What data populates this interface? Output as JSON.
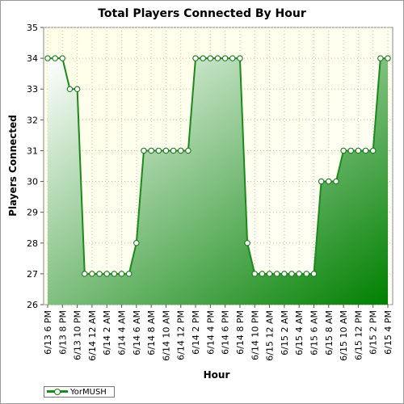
{
  "chart_data": {
    "type": "area",
    "title": "Total Players Connected By Hour",
    "xlabel": "Hour",
    "ylabel": "Players Connected",
    "ylim": [
      26,
      35
    ],
    "yticks": [
      26,
      27,
      28,
      29,
      30,
      31,
      32,
      33,
      34,
      35
    ],
    "grid": true,
    "legend_position": "bottom-left",
    "x_tick_labels": [
      "6/13 6 PM",
      "6/13 8 PM",
      "6/13 10 PM",
      "6/14 12 AM",
      "6/14 2 AM",
      "6/14 4 AM",
      "6/14 6 AM",
      "6/14 8 AM",
      "6/14 10 AM",
      "6/14 12 PM",
      "6/14 2 PM",
      "6/14 4 PM",
      "6/14 6 PM",
      "6/14 8 PM",
      "6/14 10 PM",
      "6/15 12 AM",
      "6/15 2 AM",
      "6/15 4 AM",
      "6/15 6 AM",
      "6/15 8 AM",
      "6/15 10 AM",
      "6/15 12 PM",
      "6/15 2 PM",
      "6/15 4 PM"
    ],
    "series": [
      {
        "name": "YorMUSH",
        "color": "#008000",
        "x": [
          "6/13 6 PM",
          "6/13 7 PM",
          "6/13 8 PM",
          "6/13 9 PM",
          "6/13 10 PM",
          "6/13 11 PM",
          "6/14 12 AM",
          "6/14 1 AM",
          "6/14 2 AM",
          "6/14 3 AM",
          "6/14 4 AM",
          "6/14 5 AM",
          "6/14 6 AM",
          "6/14 7 AM",
          "6/14 8 AM",
          "6/14 9 AM",
          "6/14 10 AM",
          "6/14 11 AM",
          "6/14 12 PM",
          "6/14 1 PM",
          "6/14 2 PM",
          "6/14 3 PM",
          "6/14 4 PM",
          "6/14 5 PM",
          "6/14 6 PM",
          "6/14 7 PM",
          "6/14 8 PM",
          "6/14 9 PM",
          "6/14 10 PM",
          "6/14 11 PM",
          "6/15 12 AM",
          "6/15 1 AM",
          "6/15 2 AM",
          "6/15 3 AM",
          "6/15 4 AM",
          "6/15 5 AM",
          "6/15 6 AM",
          "6/15 7 AM",
          "6/15 8 AM",
          "6/15 9 AM",
          "6/15 10 AM",
          "6/15 11 AM",
          "6/15 12 PM",
          "6/15 1 PM",
          "6/15 2 PM",
          "6/15 3 PM",
          "6/15 4 PM"
        ],
        "values": [
          34,
          34,
          34,
          33,
          33,
          27,
          27,
          27,
          27,
          27,
          27,
          27,
          28,
          31,
          31,
          31,
          31,
          31,
          31,
          31,
          34,
          34,
          34,
          34,
          34,
          34,
          34,
          28,
          27,
          27,
          27,
          27,
          27,
          27,
          27,
          27,
          27,
          30,
          30,
          30,
          31,
          31,
          31,
          31,
          31,
          34,
          34
        ]
      }
    ]
  },
  "legend": {
    "label": "YorMUSH"
  }
}
